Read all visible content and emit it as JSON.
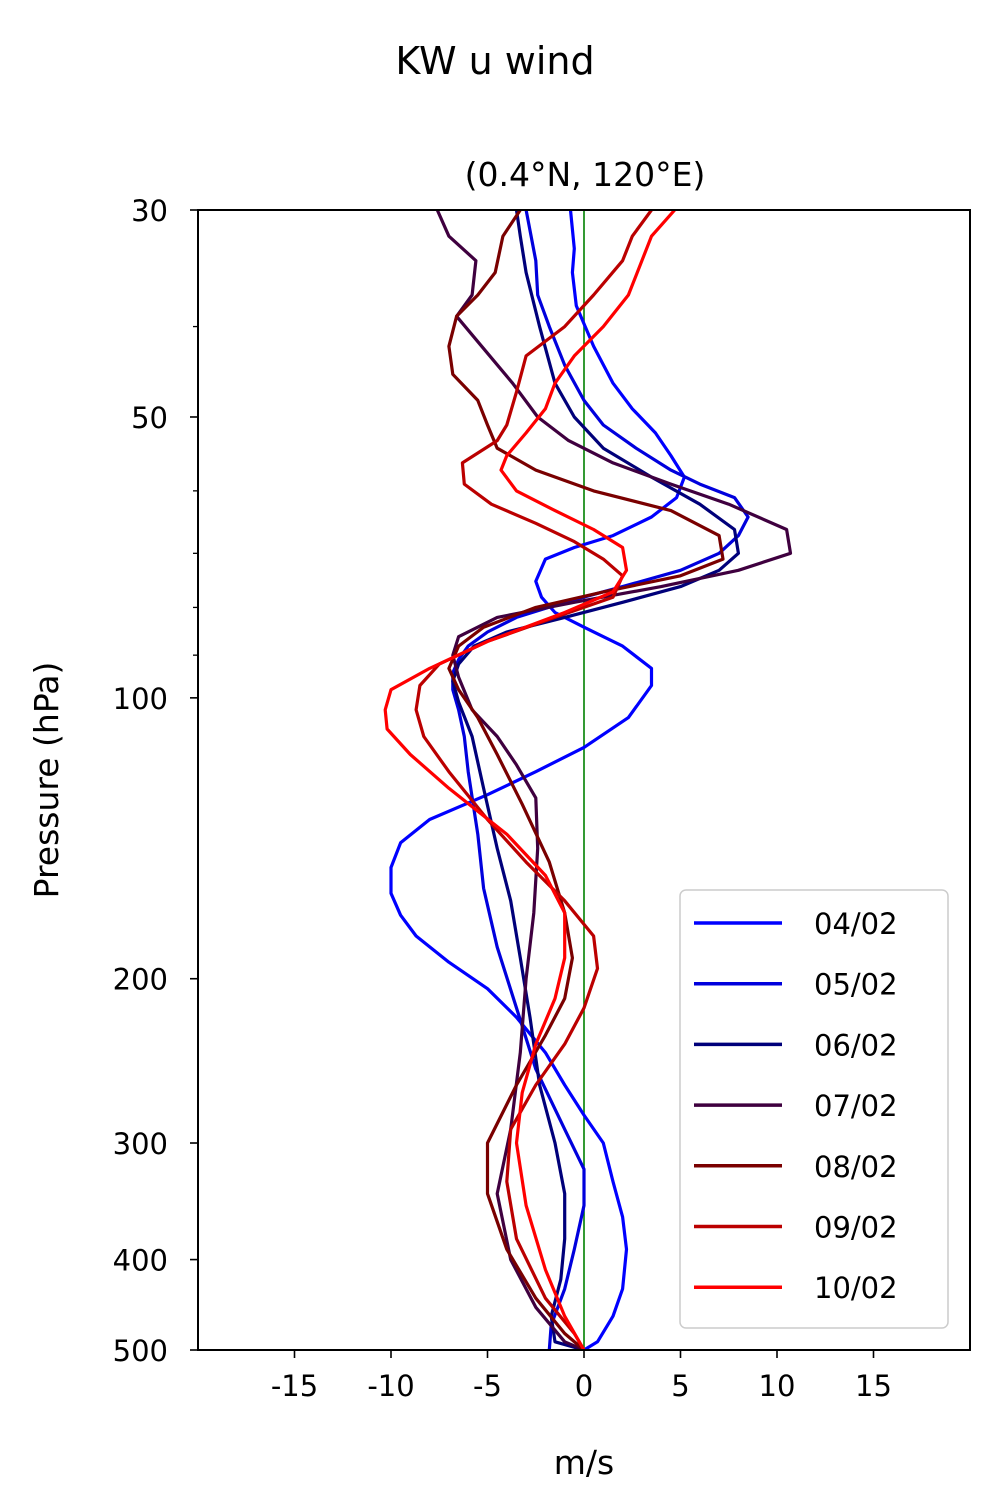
{
  "suptitle": "KW u wind",
  "chart_data": {
    "type": "line",
    "title": "(0.4°N, 120°E)",
    "xlabel": "m/s",
    "ylabel": "Pressure (hPa)",
    "xlim": [
      -20,
      20
    ],
    "ylim": [
      500,
      30
    ],
    "yscale": "log",
    "xticks": [
      -15,
      -10,
      -5,
      0,
      5,
      10,
      15
    ],
    "xtick_labels": [
      "-15",
      "-10",
      "-5",
      "0",
      "5",
      "10",
      "15"
    ],
    "yticks": [
      30,
      50,
      100,
      200,
      300,
      400,
      500
    ],
    "ytick_labels": [
      "30",
      "50",
      "100",
      "200",
      "300",
      "400",
      "500"
    ],
    "minor_yticks": [
      40,
      60,
      70,
      80,
      90
    ],
    "legend_position": "lower-right",
    "zero_line": {
      "x": 0,
      "color": "#008000"
    },
    "series": [
      {
        "name": "04/02",
        "color": "#0000ff",
        "points": [
          [
            -0.7,
            30
          ],
          [
            -0.5,
            33
          ],
          [
            -0.6,
            35
          ],
          [
            -0.4,
            38
          ],
          [
            0.5,
            42
          ],
          [
            1.5,
            46
          ],
          [
            2.5,
            49
          ],
          [
            3.7,
            52
          ],
          [
            4.5,
            55
          ],
          [
            5.2,
            58
          ],
          [
            4.8,
            61
          ],
          [
            3.5,
            64
          ],
          [
            1.5,
            67
          ],
          [
            -0.5,
            69
          ],
          [
            -2,
            71
          ],
          [
            -2.5,
            75
          ],
          [
            -2.2,
            78
          ],
          [
            -1.5,
            81
          ],
          [
            0,
            84
          ],
          [
            2,
            88
          ],
          [
            3.5,
            93
          ],
          [
            3.5,
            97
          ],
          [
            2.3,
            105
          ],
          [
            0,
            113
          ],
          [
            -2.5,
            120
          ],
          [
            -5,
            127
          ],
          [
            -8,
            135
          ],
          [
            -9.5,
            143
          ],
          [
            -10,
            152
          ],
          [
            -10,
            162
          ],
          [
            -9.5,
            171
          ],
          [
            -8.7,
            180
          ],
          [
            -7,
            192
          ],
          [
            -5,
            205
          ],
          [
            -3.5,
            220
          ],
          [
            -2,
            240
          ],
          [
            -1,
            260
          ],
          [
            0,
            280
          ],
          [
            1,
            300
          ],
          [
            1.5,
            330
          ],
          [
            2,
            360
          ],
          [
            2.2,
            390
          ],
          [
            2,
            430
          ],
          [
            1.5,
            460
          ],
          [
            0.7,
            490
          ],
          [
            0,
            500
          ]
        ]
      },
      {
        "name": "05/02",
        "color": "#0000dd",
        "points": [
          [
            -3,
            30
          ],
          [
            -2.5,
            34
          ],
          [
            -2.4,
            37
          ],
          [
            -1.8,
            40
          ],
          [
            -1,
            44
          ],
          [
            0,
            48
          ],
          [
            1,
            51
          ],
          [
            2.7,
            54
          ],
          [
            4.5,
            57
          ],
          [
            6,
            59
          ],
          [
            7.8,
            61
          ],
          [
            8.5,
            64
          ],
          [
            8,
            67
          ],
          [
            7,
            70
          ],
          [
            5,
            73
          ],
          [
            2,
            76
          ],
          [
            -1,
            79
          ],
          [
            -3.5,
            82
          ],
          [
            -5,
            85
          ],
          [
            -6,
            88
          ],
          [
            -6.5,
            91
          ],
          [
            -6.8,
            94
          ],
          [
            -6.8,
            98
          ],
          [
            -6.5,
            103
          ],
          [
            -6.2,
            110
          ],
          [
            -6,
            120
          ],
          [
            -5.5,
            140
          ],
          [
            -5.2,
            160
          ],
          [
            -4.5,
            185
          ],
          [
            -3.5,
            215
          ],
          [
            -2.5,
            250
          ],
          [
            -1,
            290
          ],
          [
            0,
            320
          ],
          [
            0,
            350
          ],
          [
            -0.5,
            390
          ],
          [
            -1,
            430
          ],
          [
            -1.7,
            470
          ],
          [
            -1.8,
            500
          ]
        ]
      },
      {
        "name": "06/02",
        "color": "#00007a",
        "points": [
          [
            -3.5,
            30
          ],
          [
            -3.3,
            32
          ],
          [
            -3,
            35
          ],
          [
            -2.3,
            40
          ],
          [
            -1.5,
            46
          ],
          [
            -0.5,
            50
          ],
          [
            1,
            54
          ],
          [
            3.5,
            58
          ],
          [
            6,
            62
          ],
          [
            7.8,
            66
          ],
          [
            8,
            70
          ],
          [
            7,
            73
          ],
          [
            5,
            76
          ],
          [
            2,
            79
          ],
          [
            -1,
            82
          ],
          [
            -4,
            85
          ],
          [
            -5.7,
            88
          ],
          [
            -6.5,
            92
          ],
          [
            -6.8,
            96
          ],
          [
            -6.5,
            101
          ],
          [
            -5.8,
            110
          ],
          [
            -5.2,
            125
          ],
          [
            -4.5,
            145
          ],
          [
            -3.8,
            165
          ],
          [
            -3.3,
            190
          ],
          [
            -2.8,
            220
          ],
          [
            -2.3,
            260
          ],
          [
            -1.5,
            300
          ],
          [
            -1,
            340
          ],
          [
            -1,
            380
          ],
          [
            -1.2,
            420
          ],
          [
            -1.7,
            460
          ],
          [
            -1.5,
            490
          ],
          [
            0,
            500
          ]
        ]
      },
      {
        "name": "07/02",
        "color": "#3f003f",
        "points": [
          [
            -7.6,
            30
          ],
          [
            -7,
            32
          ],
          [
            -5.6,
            34
          ],
          [
            -5.8,
            37
          ],
          [
            -6.6,
            39
          ],
          [
            -5.3,
            42
          ],
          [
            -3.7,
            46
          ],
          [
            -2.4,
            50
          ],
          [
            -0.8,
            53
          ],
          [
            1.5,
            56
          ],
          [
            4.5,
            59
          ],
          [
            7.5,
            62
          ],
          [
            10.5,
            66
          ],
          [
            10.7,
            70
          ],
          [
            8,
            73
          ],
          [
            4,
            76
          ],
          [
            -0.5,
            79
          ],
          [
            -4.5,
            82
          ],
          [
            -6.5,
            86
          ],
          [
            -6.8,
            90
          ],
          [
            -6.5,
            95
          ],
          [
            -5.8,
            103
          ],
          [
            -4.5,
            110
          ],
          [
            -3.5,
            118
          ],
          [
            -2.5,
            128
          ],
          [
            -2.4,
            145
          ],
          [
            -2.6,
            170
          ],
          [
            -3,
            200
          ],
          [
            -3.3,
            240
          ],
          [
            -3.8,
            290
          ],
          [
            -4.5,
            340
          ],
          [
            -3.8,
            400
          ],
          [
            -2.5,
            450
          ],
          [
            -1,
            490
          ],
          [
            0,
            500
          ]
        ]
      },
      {
        "name": "08/02",
        "color": "#7a0000",
        "points": [
          [
            -3.3,
            30
          ],
          [
            -4.2,
            32
          ],
          [
            -4.6,
            35
          ],
          [
            -5.5,
            37
          ],
          [
            -6.6,
            39
          ],
          [
            -7,
            42
          ],
          [
            -6.8,
            45
          ],
          [
            -5.5,
            48
          ],
          [
            -5,
            51
          ],
          [
            -4.5,
            54
          ],
          [
            -2.5,
            57
          ],
          [
            0.5,
            60
          ],
          [
            4.5,
            63
          ],
          [
            7,
            67
          ],
          [
            7.2,
            71
          ],
          [
            5,
            74
          ],
          [
            1,
            77
          ],
          [
            -2.5,
            80
          ],
          [
            -5.2,
            84
          ],
          [
            -6.5,
            88
          ],
          [
            -7,
            93
          ],
          [
            -6.5,
            98
          ],
          [
            -5.5,
            105
          ],
          [
            -4.5,
            115
          ],
          [
            -3.2,
            130
          ],
          [
            -1.8,
            150
          ],
          [
            -1,
            170
          ],
          [
            -0.6,
            190
          ],
          [
            -1,
            210
          ],
          [
            -2,
            230
          ],
          [
            -3.5,
            260
          ],
          [
            -5,
            300
          ],
          [
            -5,
            340
          ],
          [
            -4,
            390
          ],
          [
            -2.5,
            440
          ],
          [
            -1,
            480
          ],
          [
            0,
            500
          ]
        ]
      },
      {
        "name": "09/02",
        "color": "#bb0000",
        "points": [
          [
            3.5,
            30
          ],
          [
            2.5,
            32
          ],
          [
            2,
            34
          ],
          [
            0.5,
            37
          ],
          [
            -1,
            40
          ],
          [
            -3,
            43
          ],
          [
            -3.5,
            47
          ],
          [
            -4,
            51
          ],
          [
            -4.5,
            53
          ],
          [
            -6.3,
            56
          ],
          [
            -6.2,
            59
          ],
          [
            -4.8,
            62
          ],
          [
            -2.5,
            65
          ],
          [
            -0.5,
            68
          ],
          [
            1,
            71
          ],
          [
            2,
            74
          ],
          [
            1.5,
            78
          ],
          [
            -1.5,
            82
          ],
          [
            -5,
            87
          ],
          [
            -7.5,
            92
          ],
          [
            -8.5,
            97
          ],
          [
            -8.7,
            103
          ],
          [
            -8.3,
            110
          ],
          [
            -7,
            120
          ],
          [
            -5,
            135
          ],
          [
            -3,
            150
          ],
          [
            -1,
            165
          ],
          [
            0.5,
            180
          ],
          [
            0.7,
            195
          ],
          [
            0,
            215
          ],
          [
            -1,
            235
          ],
          [
            -2.5,
            260
          ],
          [
            -3.8,
            290
          ],
          [
            -4,
            330
          ],
          [
            -3.5,
            380
          ],
          [
            -2,
            440
          ],
          [
            -0.5,
            480
          ],
          [
            0,
            500
          ]
        ]
      },
      {
        "name": "10/02",
        "color": "#ff0000",
        "points": [
          [
            4.7,
            30
          ],
          [
            3.5,
            32
          ],
          [
            3,
            34
          ],
          [
            2.3,
            37
          ],
          [
            1,
            40
          ],
          [
            -0.5,
            43
          ],
          [
            -1.5,
            46
          ],
          [
            -2,
            49
          ],
          [
            -3,
            52
          ],
          [
            -4,
            55
          ],
          [
            -4.3,
            57
          ],
          [
            -3.5,
            60
          ],
          [
            -1.5,
            63
          ],
          [
            0.5,
            66
          ],
          [
            2,
            69
          ],
          [
            2.2,
            73
          ],
          [
            1.5,
            77
          ],
          [
            -1,
            81
          ],
          [
            -5,
            87
          ],
          [
            -8,
            93
          ],
          [
            -10,
            98
          ],
          [
            -10.3,
            103
          ],
          [
            -10.2,
            108
          ],
          [
            -9,
            115
          ],
          [
            -7,
            125
          ],
          [
            -4,
            140
          ],
          [
            -2,
            155
          ],
          [
            -1,
            170
          ],
          [
            -1,
            190
          ],
          [
            -1.5,
            210
          ],
          [
            -2.5,
            235
          ],
          [
            -3.2,
            265
          ],
          [
            -3.5,
            300
          ],
          [
            -3,
            350
          ],
          [
            -2,
            410
          ],
          [
            -1,
            460
          ],
          [
            0,
            500
          ]
        ]
      }
    ]
  }
}
